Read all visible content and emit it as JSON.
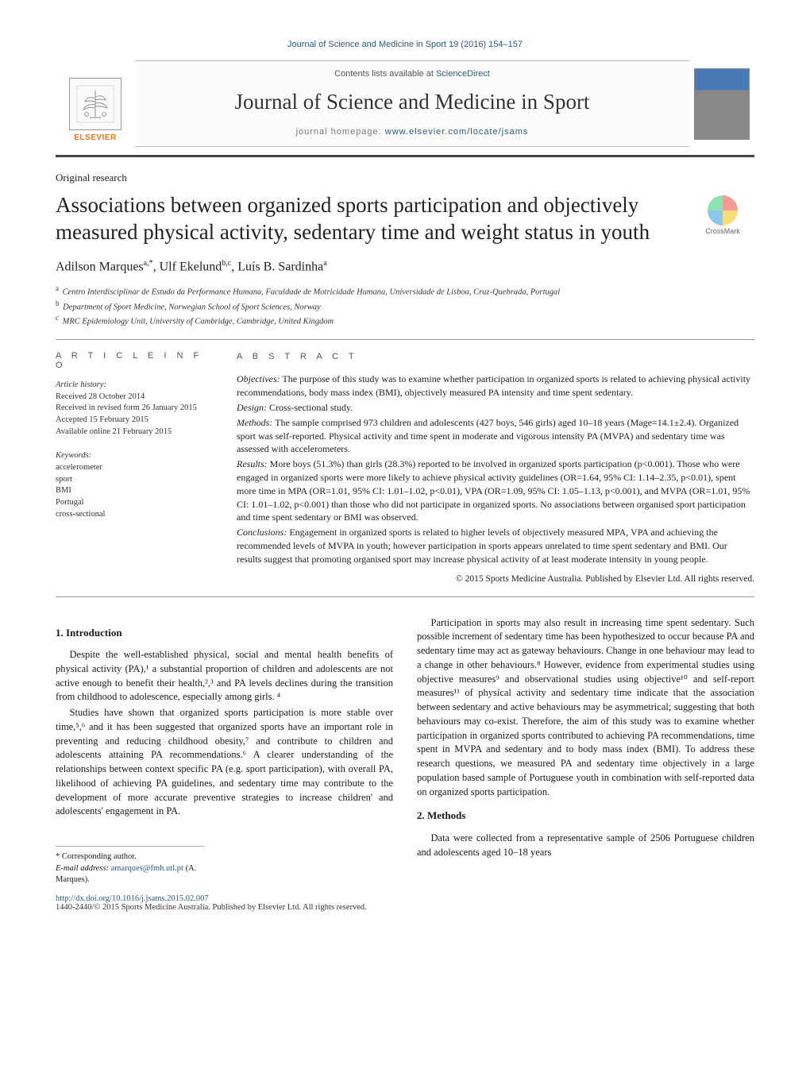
{
  "header": {
    "citation": "Journal of Science and Medicine in Sport 19 (2016) 154–157",
    "contents_prefix": "Contents lists available at ",
    "contents_link": "ScienceDirect",
    "journal_name": "Journal of Science and Medicine in Sport",
    "homepage_prefix": "journal homepage: ",
    "homepage_url": "www.elsevier.com/locate/jsams",
    "elsevier_label": "ELSEVIER",
    "crossmark_label": "CrossMark"
  },
  "article": {
    "type": "Original research",
    "title": "Associations between organized sports participation and objectively measured physical activity, sedentary time and weight status in youth",
    "authors_html": "Adilson Marques",
    "authors": [
      {
        "name": "Adilson Marques",
        "affs": "a,*"
      },
      {
        "name": "Ulf Ekelund",
        "affs": "b,c"
      },
      {
        "name": "Luís B. Sardinha",
        "affs": "a"
      }
    ],
    "affiliations": [
      {
        "label": "a",
        "text": "Centro Interdisciplinar de Estudo da Performance Humana, Faculdade de Motricidade Humana, Universidade de Lisboa, Cruz-Quebrada, Portugal"
      },
      {
        "label": "b",
        "text": "Department of Sport Medicine, Norwegian School of Sport Sciences, Norway"
      },
      {
        "label": "c",
        "text": "MRC Epidemiology Unit, University of Cambridge, Cambridge, United Kingdom"
      }
    ]
  },
  "article_info": {
    "heading": "a r t i c l e   i n f o",
    "history_label": "Article history:",
    "history": [
      "Received 28 October 2014",
      "Received in revised form 26 January 2015",
      "Accepted 15 February 2015",
      "Available online 21 February 2015"
    ],
    "keywords_label": "Keywords:",
    "keywords": [
      "accelerometer",
      "sport",
      "BMI",
      "Portugal",
      "cross-sectional"
    ]
  },
  "abstract": {
    "heading": "a b s t r a c t",
    "sections": [
      {
        "label": "Objectives:",
        "text": "The purpose of this study was to examine whether participation in organized sports is related to achieving physical activity recommendations, body mass index (BMI), objectively measured PA intensity and time spent sedentary."
      },
      {
        "label": "Design:",
        "text": "Cross-sectional study."
      },
      {
        "label": "Methods:",
        "text": "The sample comprised 973 children and adolescents (427 boys, 546 girls) aged 10–18 years (Mage=14.1±2.4). Organized sport was self-reported. Physical activity and time spent in moderate and vigorous intensity PA (MVPA) and sedentary time was assessed with accelerometers."
      },
      {
        "label": "Results:",
        "text": "More boys (51.3%) than girls (28.3%) reported to be involved in organized sports participation (p<0.001). Those who were engaged in organized sports were more likely to achieve physical activity guidelines (OR=1.64, 95% CI: 1.14–2.35, p<0.01), spent more time in MPA (OR=1.01, 95% CI: 1.01–1.02, p<0.01), VPA (OR=1.09, 95% CI: 1.05–1.13, p<0.001), and MVPA (OR=1.01, 95% CI: 1.01–1.02, p<0.001) than those who did not participate in organized sports. No associations between organised sport participation and time spent sedentary or BMI was observed."
      },
      {
        "label": "Conclusions:",
        "text": "Engagement in organized sports is related to higher levels of objectively measured MPA, VPA and achieving the recommended levels of MVPA in youth; however participation in sports appears unrelated to time spent sedentary and BMI. Our results suggest that promoting organised sport may increase physical activity of at least moderate intensity in young people."
      }
    ],
    "copyright": "© 2015 Sports Medicine Australia. Published by Elsevier Ltd. All rights reserved."
  },
  "body": {
    "sections": [
      {
        "heading": "1. Introduction",
        "paragraphs": [
          "Despite the well-established physical, social and mental health benefits of physical activity (PA),¹ a substantial proportion of children and adolescents are not active enough to benefit their health,²,³ and PA levels declines during the transition from childhood to adolescence, especially among girls. ⁴",
          "Studies have shown that organized sports participation is more stable over time,⁵,⁶ and it has been suggested that organized sports have an important role in preventing and reducing childhood obesity,⁷ and contribute to children and adolescents attaining PA recommendations.⁶ A clearer understanding of the relationships between context specific PA (e.g. sport participation), with overall PA, likelihood of achieving PA guidelines, and sedentary time may contribute to the development of more accurate preventive strategies to increase children' and adolescents' engagement in PA."
        ]
      }
    ],
    "col2_paragraphs": [
      "Participation in sports may also result in increasing time spent sedentary. Such possible increment of sedentary time has been hypothesized to occur because PA and sedentary time may act as gateway behaviours. Change in one behaviour may lead to a change in other behaviours.⁸ However, evidence from experimental studies using objective measures⁹ and observational studies using objective¹⁰ and self-report measures¹¹ of physical activity and sedentary time indicate that the association between sedentary and active behaviours may be asymmetrical; suggesting that both behaviours may co-exist. Therefore, the aim of this study was to examine whether participation in organized sports contributed to achieving PA recommendations, time spent in MVPA and sedentary and to body mass index (BMI). To address these research questions, we measured PA and sedentary time objectively in a large population based sample of Portuguese youth in combination with self-reported data on organized sports participation."
    ],
    "methods": {
      "heading": "2. Methods",
      "paragraphs": [
        "Data were collected from a representative sample of 2506 Portuguese children and adolescents aged 10–18 years"
      ]
    }
  },
  "footnotes": {
    "corr_label": "* Corresponding author.",
    "email_label": "E-mail address: ",
    "email": "amarques@fmh.utl.pt",
    "email_suffix": " (A. Marques).",
    "doi": "http://dx.doi.org/10.1016/j.jsams.2015.02.007",
    "issn_copyright": "1440-2440/© 2015 Sports Medicine Australia. Published by Elsevier Ltd. All rights reserved."
  },
  "colors": {
    "link": "#2a5a8a",
    "elsevier_orange": "#e67817",
    "rule": "#444444",
    "thin_rule": "#999999"
  }
}
